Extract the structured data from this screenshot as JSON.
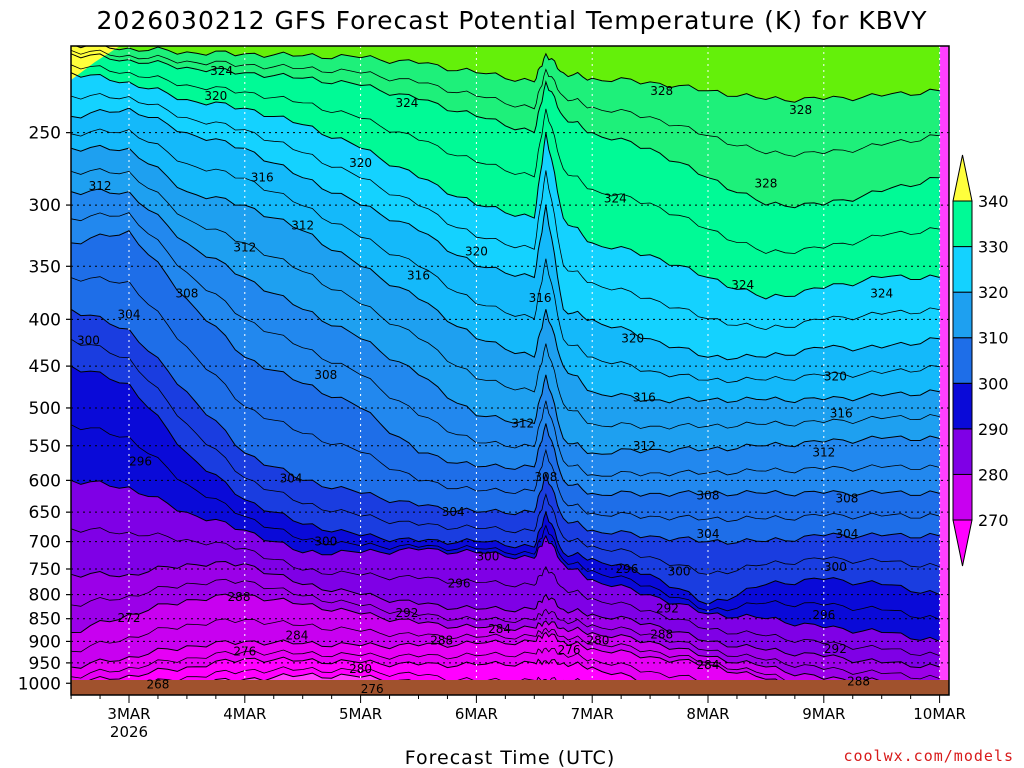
{
  "chart_data": {
    "type": "heatmap",
    "title": "2026030212 GFS Forecast Potential Temperature (K) for KBVY",
    "xlabel": "Forecast Time (UTC)",
    "ylabel": "",
    "credit": "coolwx.com/models",
    "x_start": 2.5,
    "x_end": 10.0,
    "x_ticks": [
      {
        "value": 3,
        "label": "3MAR",
        "sublabel": "2026"
      },
      {
        "value": 4,
        "label": "4MAR",
        "sublabel": ""
      },
      {
        "value": 5,
        "label": "5MAR",
        "sublabel": ""
      },
      {
        "value": 6,
        "label": "6MAR",
        "sublabel": ""
      },
      {
        "value": 7,
        "label": "7MAR",
        "sublabel": ""
      },
      {
        "value": 8,
        "label": "8MAR",
        "sublabel": ""
      },
      {
        "value": 9,
        "label": "9MAR",
        "sublabel": ""
      },
      {
        "value": 10,
        "label": "10MAR",
        "sublabel": ""
      }
    ],
    "y_axis": "pressure (hPa), log scale, inverted",
    "y_range": [
      1030,
      200
    ],
    "y_ticks": [
      250,
      300,
      350,
      400,
      450,
      500,
      550,
      600,
      650,
      700,
      750,
      800,
      850,
      900,
      950,
      1000
    ],
    "colorbar": {
      "levels": [
        270,
        280,
        290,
        300,
        310,
        320,
        330,
        340
      ],
      "colors": [
        "#ff00ff",
        "#c800f0",
        "#7f00e6",
        "#0a0ad8",
        "#1e6ee8",
        "#1ea0f0",
        "#14d2ff",
        "#00fa96",
        "#64f00a",
        "#ffff3c"
      ]
    },
    "contour_interval": 2,
    "level_profiles": {
      "time": [
        2.5,
        3.0,
        3.5,
        4.0,
        4.5,
        5.0,
        5.5,
        6.0,
        6.5,
        6.6,
        6.75,
        7.0,
        7.5,
        8.0,
        8.5,
        9.0,
        9.5,
        10.0
      ],
      "theta_276": [
        1030,
        1030,
        1000,
        990,
        980,
        985,
        1000,
        1030,
        1030,
        1030,
        1030,
        1030,
        1030,
        1030,
        1030,
        1030,
        1030,
        1030
      ],
      "theta_280": [
        1000,
        980,
        960,
        940,
        945,
        950,
        955,
        955,
        950,
        945,
        950,
        960,
        1000,
        1030,
        1030,
        1030,
        1030,
        1030
      ],
      "theta_284": [
        960,
        935,
        910,
        900,
        905,
        910,
        910,
        905,
        900,
        880,
        900,
        915,
        935,
        955,
        990,
        1030,
        1030,
        1030
      ],
      "theta_288": [
        880,
        840,
        810,
        800,
        820,
        840,
        860,
        870,
        870,
        855,
        870,
        880,
        900,
        935,
        960,
        990,
        995,
        1010
      ],
      "theta_292": [
        760,
        760,
        740,
        740,
        780,
        800,
        820,
        830,
        830,
        800,
        830,
        840,
        860,
        900,
        920,
        935,
        950,
        960
      ],
      "theta_296": [
        600,
        610,
        650,
        680,
        720,
        720,
        715,
        720,
        730,
        690,
        740,
        770,
        800,
        840,
        850,
        870,
        880,
        900
      ],
      "theta_300": [
        450,
        470,
        560,
        630,
        670,
        690,
        700,
        700,
        710,
        650,
        720,
        730,
        760,
        820,
        780,
        770,
        780,
        800
      ],
      "theta_304": [
        390,
        410,
        480,
        560,
        600,
        620,
        640,
        650,
        650,
        590,
        660,
        680,
        690,
        700,
        700,
        690,
        690,
        690
      ],
      "theta_308": [
        330,
        320,
        380,
        440,
        470,
        500,
        560,
        580,
        580,
        520,
        600,
        620,
        620,
        620,
        620,
        620,
        620,
        620
      ],
      "theta_312": [
        290,
        290,
        330,
        360,
        390,
        420,
        460,
        510,
        520,
        460,
        540,
        560,
        555,
        555,
        550,
        545,
        540,
        540
      ],
      "theta_316": [
        260,
        260,
        290,
        300,
        320,
        350,
        380,
        420,
        440,
        390,
        450,
        480,
        490,
        490,
        490,
        490,
        485,
        480
      ],
      "theta_320": [
        240,
        235,
        250,
        260,
        280,
        300,
        320,
        350,
        360,
        300,
        390,
        400,
        420,
        440,
        440,
        430,
        430,
        420
      ],
      "theta_324": [
        215,
        220,
        230,
        235,
        245,
        260,
        280,
        300,
        310,
        250,
        310,
        330,
        340,
        360,
        380,
        370,
        360,
        360
      ],
      "theta_328": [
        205,
        208,
        212,
        215,
        218,
        222,
        230,
        240,
        250,
        220,
        240,
        250,
        260,
        280,
        300,
        300,
        290,
        280
      ],
      "theta_332": [
        200,
        202,
        204,
        205,
        206,
        207,
        210,
        215,
        220,
        205,
        215,
        218,
        220,
        225,
        230,
        230,
        228,
        225
      ]
    },
    "contour_labels": [
      {
        "text": "324",
        "t": 3.8,
        "p": 214
      },
      {
        "text": "320",
        "t": 3.75,
        "p": 228
      },
      {
        "text": "324",
        "t": 5.4,
        "p": 232
      },
      {
        "text": "328",
        "t": 7.6,
        "p": 225
      },
      {
        "text": "328",
        "t": 8.8,
        "p": 236
      },
      {
        "text": "320",
        "t": 5.0,
        "p": 270
      },
      {
        "text": "316",
        "t": 4.15,
        "p": 280
      },
      {
        "text": "312",
        "t": 2.75,
        "p": 286
      },
      {
        "text": "328",
        "t": 8.5,
        "p": 284
      },
      {
        "text": "324",
        "t": 7.2,
        "p": 295
      },
      {
        "text": "312",
        "t": 4.5,
        "p": 316
      },
      {
        "text": "312",
        "t": 4.0,
        "p": 334
      },
      {
        "text": "320",
        "t": 6.0,
        "p": 337
      },
      {
        "text": "316",
        "t": 5.5,
        "p": 358
      },
      {
        "text": "324",
        "t": 8.3,
        "p": 367
      },
      {
        "text": "324",
        "t": 9.5,
        "p": 375
      },
      {
        "text": "316",
        "t": 6.55,
        "p": 379
      },
      {
        "text": "308",
        "t": 3.5,
        "p": 375
      },
      {
        "text": "304",
        "t": 3.0,
        "p": 395
      },
      {
        "text": "300",
        "t": 2.65,
        "p": 422
      },
      {
        "text": "320",
        "t": 7.35,
        "p": 420
      },
      {
        "text": "308",
        "t": 4.7,
        "p": 460
      },
      {
        "text": "320",
        "t": 9.1,
        "p": 462
      },
      {
        "text": "316",
        "t": 7.45,
        "p": 487
      },
      {
        "text": "316",
        "t": 9.15,
        "p": 507
      },
      {
        "text": "312",
        "t": 6.4,
        "p": 520
      },
      {
        "text": "312",
        "t": 7.45,
        "p": 550
      },
      {
        "text": "312",
        "t": 9.0,
        "p": 559
      },
      {
        "text": "296",
        "t": 3.1,
        "p": 572
      },
      {
        "text": "308",
        "t": 6.6,
        "p": 595
      },
      {
        "text": "304",
        "t": 4.4,
        "p": 597
      },
      {
        "text": "308",
        "t": 8.0,
        "p": 623
      },
      {
        "text": "308",
        "t": 9.2,
        "p": 628
      },
      {
        "text": "304",
        "t": 5.8,
        "p": 650
      },
      {
        "text": "304",
        "t": 8.0,
        "p": 687
      },
      {
        "text": "304",
        "t": 9.2,
        "p": 687
      },
      {
        "text": "300",
        "t": 4.7,
        "p": 700
      },
      {
        "text": "300",
        "t": 6.1,
        "p": 727
      },
      {
        "text": "300",
        "t": 9.1,
        "p": 746
      },
      {
        "text": "296",
        "t": 7.3,
        "p": 750
      },
      {
        "text": "300",
        "t": 7.75,
        "p": 755
      },
      {
        "text": "296",
        "t": 5.85,
        "p": 778
      },
      {
        "text": "288",
        "t": 3.95,
        "p": 805
      },
      {
        "text": "292",
        "t": 5.4,
        "p": 838
      },
      {
        "text": "292",
        "t": 7.65,
        "p": 828
      },
      {
        "text": "296",
        "t": 9.0,
        "p": 842
      },
      {
        "text": "272",
        "t": 3.0,
        "p": 848
      },
      {
        "text": "284",
        "t": 4.45,
        "p": 887
      },
      {
        "text": "284",
        "t": 6.2,
        "p": 872
      },
      {
        "text": "288",
        "t": 5.7,
        "p": 898
      },
      {
        "text": "288",
        "t": 7.6,
        "p": 885
      },
      {
        "text": "280",
        "t": 7.05,
        "p": 898
      },
      {
        "text": "292",
        "t": 9.1,
        "p": 917
      },
      {
        "text": "276",
        "t": 4.0,
        "p": 923
      },
      {
        "text": "276",
        "t": 6.8,
        "p": 920
      },
      {
        "text": "284",
        "t": 8.0,
        "p": 955
      },
      {
        "text": "280",
        "t": 5.0,
        "p": 965
      },
      {
        "text": "288",
        "t": 9.3,
        "p": 995
      },
      {
        "text": "268",
        "t": 3.25,
        "p": 1003
      },
      {
        "text": "276",
        "t": 5.1,
        "p": 1015
      }
    ]
  }
}
